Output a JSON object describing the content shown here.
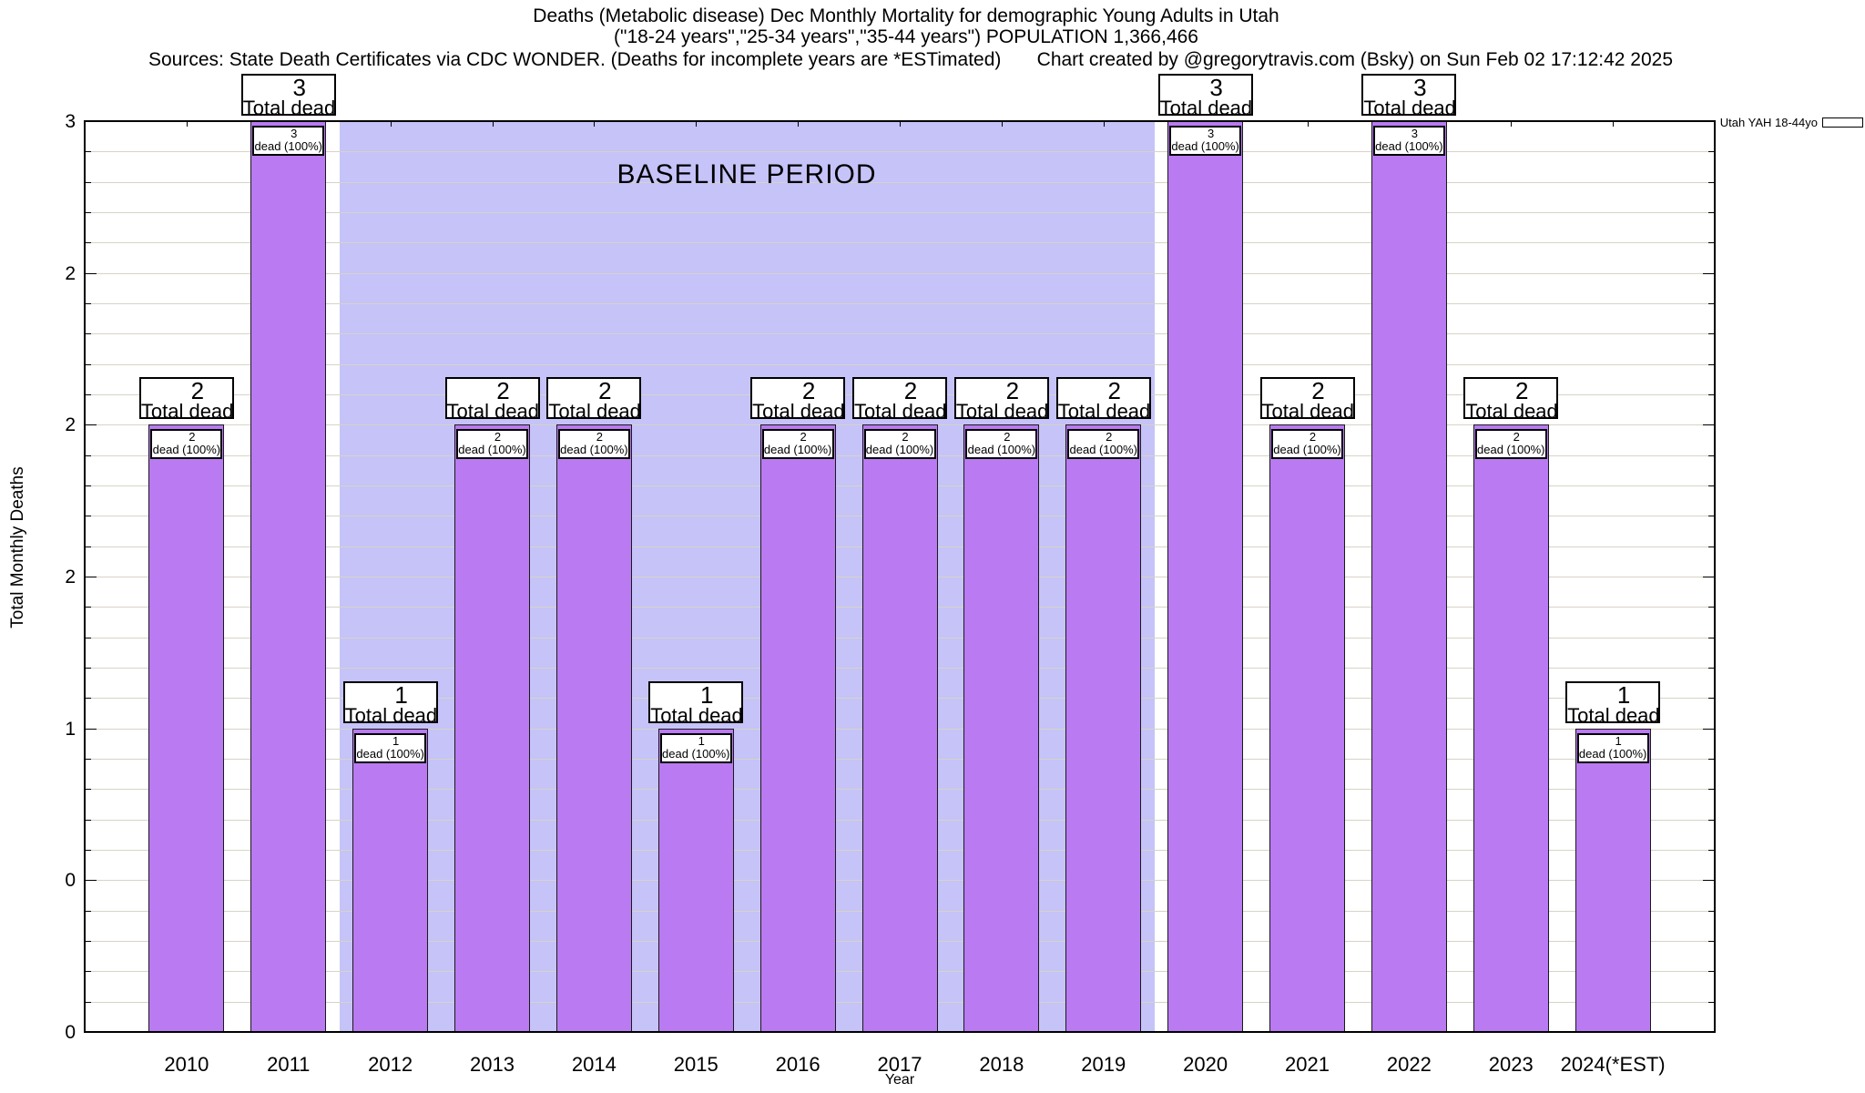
{
  "header": {
    "title_line1": "Deaths (Metabolic disease) Dec Monthly Mortality for demographic Young Adults in Utah",
    "title_line2": "(\"18-24 years\",\"25-34 years\",\"35-44 years\") POPULATION 1,366,466",
    "sources_note": "Sources: State Death Certificates via CDC WONDER. (Deaths for incomplete years are *ESTimated)",
    "credit_note": "Chart created by @gregorytravis.com (Bsky) on Sun Feb 02 17:12:42 2025"
  },
  "legend": {
    "label": "Utah YAH 18-44yo",
    "swatch_color": "#b97af2"
  },
  "chart_data": {
    "type": "bar",
    "title": "Deaths (Metabolic disease) Dec Monthly Mortality for demographic Young Adults in Utah",
    "subtitle": "(\"18-24 years\",\"25-34 years\",\"35-44 years\") POPULATION 1,366,466",
    "xlabel": "Year",
    "ylabel": "Total Monthly Deaths",
    "ylim": [
      0,
      3
    ],
    "grid": "minor horizontal every 0.1",
    "legend_position": "top-right outside plot",
    "categories": [
      "2010",
      "2011",
      "2012",
      "2013",
      "2014",
      "2015",
      "2016",
      "2017",
      "2018",
      "2019",
      "2020",
      "2021",
      "2022",
      "2023",
      "2024(*EST)"
    ],
    "series": [
      {
        "name": "Utah YAH 18-44yo",
        "values": [
          2,
          3,
          1,
          2,
          2,
          1,
          2,
          2,
          2,
          2,
          3,
          2,
          3,
          2,
          1
        ]
      }
    ],
    "bar_top_label_suffix": "Total dead",
    "bar_inner_label_suffix": "dead (100%)",
    "bars": [
      {
        "year": "2010",
        "total": "2",
        "total_label": "Total dead",
        "inner_label": "dead (100%)"
      },
      {
        "year": "2011",
        "total": "3",
        "total_label": "Total dead",
        "inner_label": "dead (100%)"
      },
      {
        "year": "2012",
        "total": "1",
        "total_label": "Total dead",
        "inner_label": "dead (100%)"
      },
      {
        "year": "2013",
        "total": "2",
        "total_label": "Total dead",
        "inner_label": "dead (100%)"
      },
      {
        "year": "2014",
        "total": "2",
        "total_label": "Total dead",
        "inner_label": "dead (100%)"
      },
      {
        "year": "2015",
        "total": "1",
        "total_label": "Total dead",
        "inner_label": "dead (100%)"
      },
      {
        "year": "2016",
        "total": "2",
        "total_label": "Total dead",
        "inner_label": "dead (100%)"
      },
      {
        "year": "2017",
        "total": "2",
        "total_label": "Total dead",
        "inner_label": "dead (100%)"
      },
      {
        "year": "2018",
        "total": "2",
        "total_label": "Total dead",
        "inner_label": "dead (100%)"
      },
      {
        "year": "2019",
        "total": "2",
        "total_label": "Total dead",
        "inner_label": "dead (100%)"
      },
      {
        "year": "2020",
        "total": "3",
        "total_label": "Total dead",
        "inner_label": "dead (100%)"
      },
      {
        "year": "2021",
        "total": "2",
        "total_label": "Total dead",
        "inner_label": "dead (100%)"
      },
      {
        "year": "2022",
        "total": "3",
        "total_label": "Total dead",
        "inner_label": "dead (100%)"
      },
      {
        "year": "2023",
        "total": "2",
        "total_label": "Total dead",
        "inner_label": "dead (100%)"
      },
      {
        "year": "2024(*EST)",
        "total": "1",
        "total_label": "Total dead",
        "inner_label": "dead (100%)"
      }
    ],
    "y_ticks": [
      {
        "label": "3",
        "value": 3
      },
      {
        "label": "2",
        "value": 2.5
      },
      {
        "label": "2",
        "value": 2
      },
      {
        "label": "2",
        "value": 1.5
      },
      {
        "label": "1",
        "value": 1
      },
      {
        "label": "0",
        "value": 0.5
      },
      {
        "label": "0",
        "value": 0
      }
    ],
    "baseline": {
      "label": "BASELINE PERIOD",
      "from_year": 2011.5,
      "to_year": 2019.5
    },
    "colors": {
      "bar_fill": "#b97af2",
      "bar_border": "#1a1a1a",
      "baseline_fill": "#c5c3f8",
      "gridline": "#d7d3c6",
      "axis": "#000000",
      "background": "#ffffff"
    }
  }
}
